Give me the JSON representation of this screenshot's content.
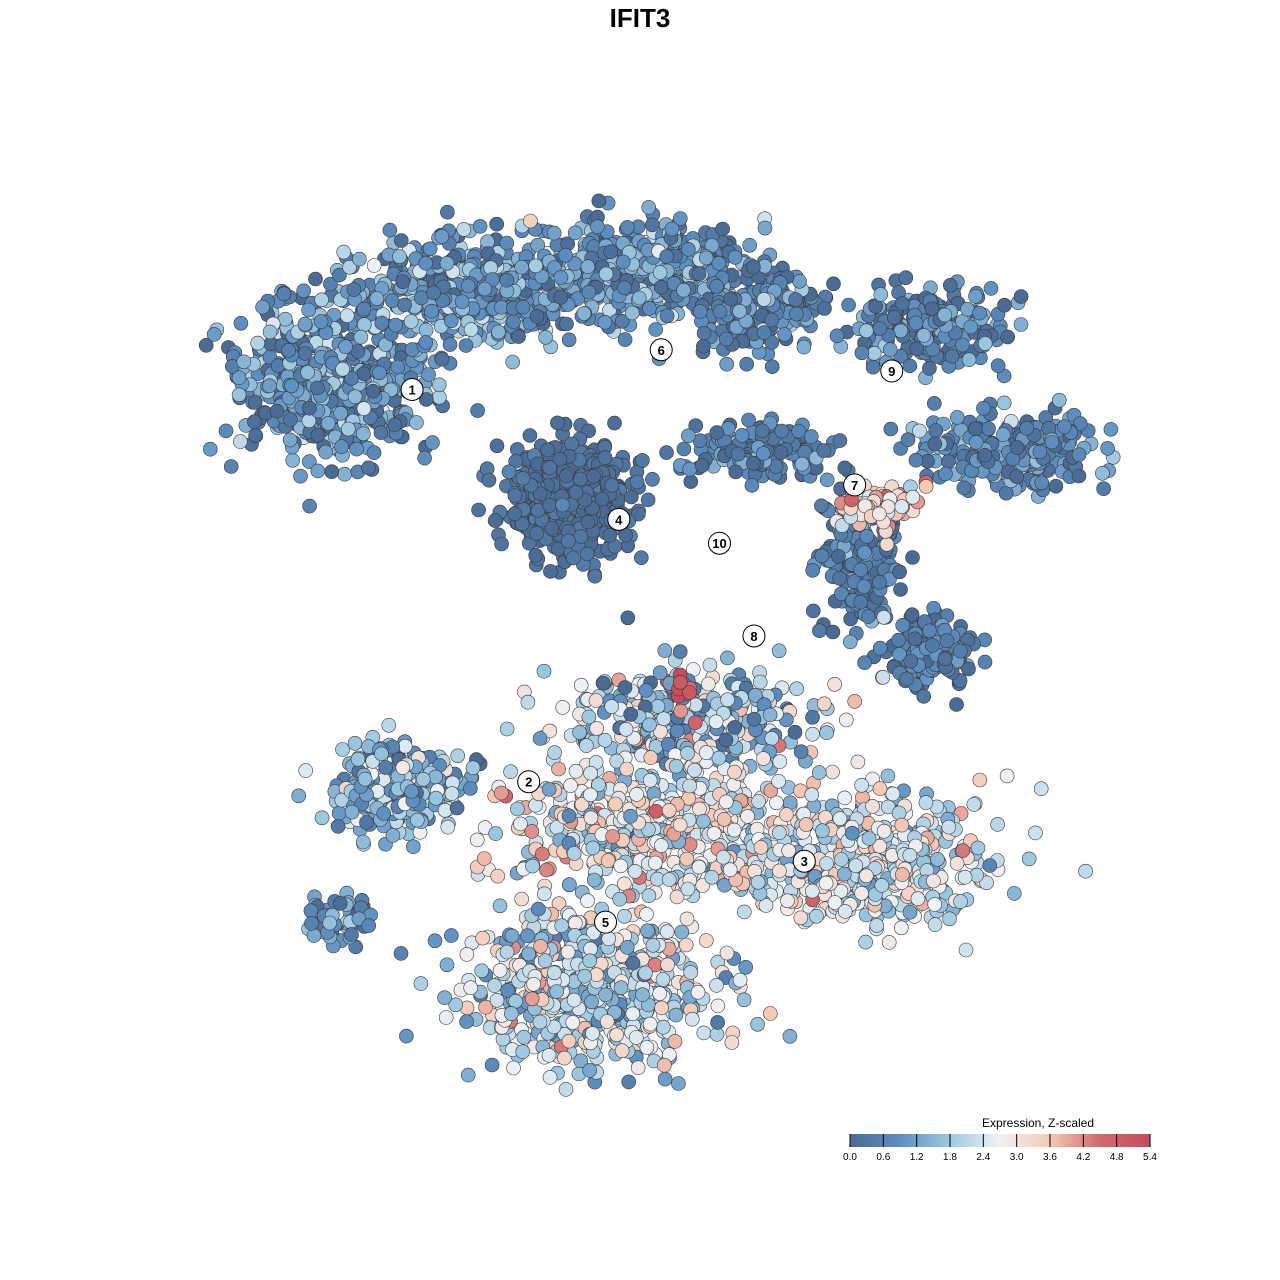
{
  "chart_data": {
    "type": "scatter",
    "title": "IFIT3",
    "xlabel": "",
    "ylabel": "",
    "grid": false,
    "clusters": [
      {
        "label": "1",
        "x": -4.3,
        "y": 4.5
      },
      {
        "label": "2",
        "x": -2.1,
        "y": -2.9
      },
      {
        "label": "3",
        "x": 3.1,
        "y": -4.4
      },
      {
        "label": "4",
        "x": -0.4,
        "y": 2.05
      },
      {
        "label": "5",
        "x": -0.65,
        "y": -5.55
      },
      {
        "label": "6",
        "x": 0.4,
        "y": 5.25
      },
      {
        "label": "7",
        "x": 4.05,
        "y": 2.7
      },
      {
        "label": "8",
        "x": 2.15,
        "y": -0.15
      },
      {
        "label": "9",
        "x": 4.75,
        "y": 4.85
      },
      {
        "label": "10",
        "x": 1.5,
        "y": 1.6
      }
    ],
    "color_scale": {
      "title": "Expression, Z-scaled",
      "min": 0.0,
      "max": 5.4,
      "ticks": [
        "0.0",
        "0.6",
        "1.2",
        "1.8",
        "2.4",
        "3.0",
        "3.6",
        "4.2",
        "4.8",
        "5.4"
      ],
      "colors": [
        "#4a6b94",
        "#5d8fc0",
        "#9ec9e0",
        "#eef2f6",
        "#f5c9b5",
        "#d16a6f",
        "#c84a5a"
      ]
    }
  }
}
